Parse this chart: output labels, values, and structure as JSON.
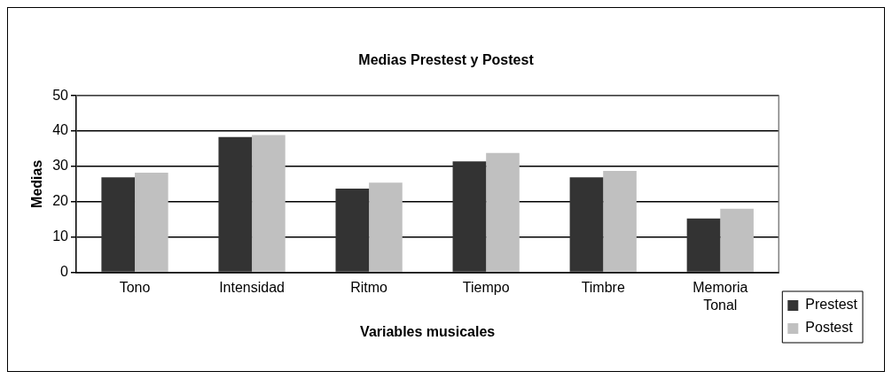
{
  "chart_data": {
    "type": "bar",
    "title": "Medias Prestest y Postest",
    "xlabel": "Variables musicales",
    "ylabel": "Medias",
    "categories": [
      "Tono",
      "Intensidad",
      "Ritmo",
      "Tiempo",
      "Timbre",
      "Memoria Tonal"
    ],
    "series": [
      {
        "name": "Prestest",
        "color": "#333333",
        "values": [
          26.9,
          38.3,
          23.7,
          31.4,
          26.9,
          15.2
        ]
      },
      {
        "name": "Postest",
        "color": "#c0c0c0",
        "values": [
          28.2,
          38.9,
          25.4,
          33.8,
          28.7,
          18.0
        ]
      }
    ],
    "ylim": [
      0,
      50
    ],
    "yticks": [
      0,
      10,
      20,
      30,
      40,
      50
    ],
    "grid": "y",
    "legend": "right"
  }
}
